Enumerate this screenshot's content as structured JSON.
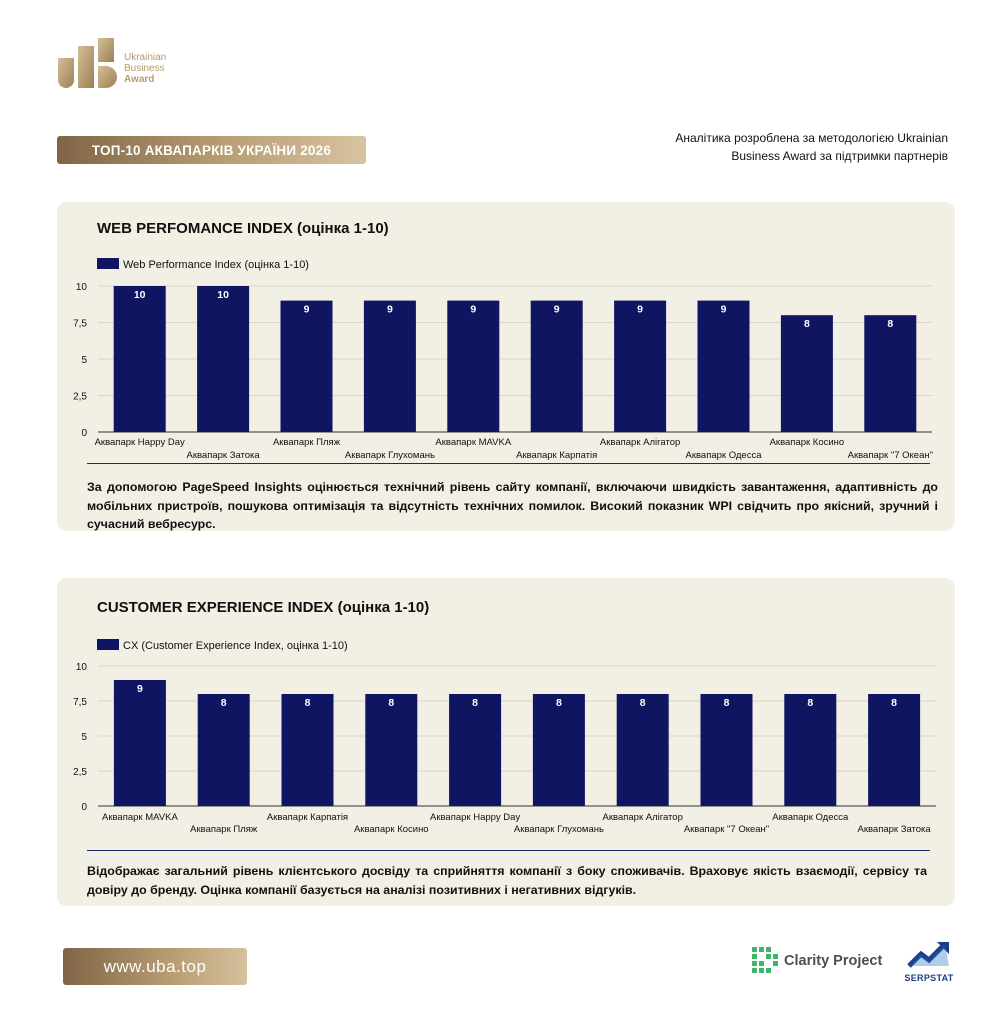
{
  "brand": {
    "logo_line1": "Ukrainian",
    "logo_line2": "Business",
    "logo_line3": "Award"
  },
  "header": {
    "banner_title": "ТОП-10 АКВАПАРКІВ УКРАЇНИ 2026",
    "partner_note_line1": "Аналітика розроблена за методологією Ukrainian",
    "partner_note_line2": "Business Award за підтримки партнерів"
  },
  "colors": {
    "bar": "#0f1561",
    "gold": "#b99e74",
    "card_bg": "#f2efe5"
  },
  "chart_data": [
    {
      "type": "bar",
      "title": "WEB PERFOMANCE INDEX (оцінка 1-10)",
      "legend": "Web Performance Index (оцінка 1-10)",
      "legend_position": "top-left",
      "categories": [
        "Аквапарк Happy Day",
        "Аквапарк Затока",
        "Аквапарк Пляж",
        "Аквапарк Глухомань",
        "Аквапарк MAVKA",
        "Аквапарк Карпатія",
        "Аквапарк Алігатор",
        "Аквапарк Одесса",
        "Аквапарк Косино",
        "Аквапарк \"7 Океан\""
      ],
      "values": [
        10,
        10,
        9,
        9,
        9,
        9,
        9,
        9,
        8,
        8
      ],
      "yticks": [
        "0",
        "2,5",
        "5",
        "7,5",
        "10"
      ],
      "ylim": [
        0,
        10
      ],
      "grid": true
    },
    {
      "type": "bar",
      "title": "CUSTOMER EXPERIENCE INDEX (оцінка 1-10)",
      "legend": "CX (Customer Experience Index, оцінка 1-10)",
      "legend_position": "top-left",
      "categories": [
        "Аквапарк MAVKA",
        "Аквапарк Пляж",
        "Аквапарк Карпатія",
        "Аквапарк Косино",
        "Аквапарк Happy Day",
        "Аквапарк Глухомань",
        "Аквапарк Алігатор",
        "Аквапарк \"7 Океан\"",
        "Аквапарк Одесса",
        "Аквапарк Затока"
      ],
      "values": [
        9,
        8,
        8,
        8,
        8,
        8,
        8,
        8,
        8,
        8
      ],
      "yticks": [
        "0",
        "2,5",
        "5",
        "7,5",
        "10"
      ],
      "ylim": [
        0,
        10
      ],
      "grid": true
    }
  ],
  "descriptions": {
    "wpi": "За допомогою PageSpeed Insights оцінюється технічний рівень сайту компанії, включаючи швидкість завантаження, адаптивність до мобільних пристроїв, пошукова оптимізація та відсутність технічних помилок. Високий показник WPI свідчить про якісний, зручний і сучасний вебресурс.",
    "cx": "Відображає загальний рівень клієнтського досвіду та сприйняття компанії з боку споживачів. Враховує якість взаємодії, сервісу та довіру до бренду. Оцінка компанії базується на аналізі позитивних і негативних відгуків."
  },
  "footer": {
    "url": "www.uba.top",
    "partner1": "Clarity Project",
    "partner2": "SERPSTAT"
  }
}
